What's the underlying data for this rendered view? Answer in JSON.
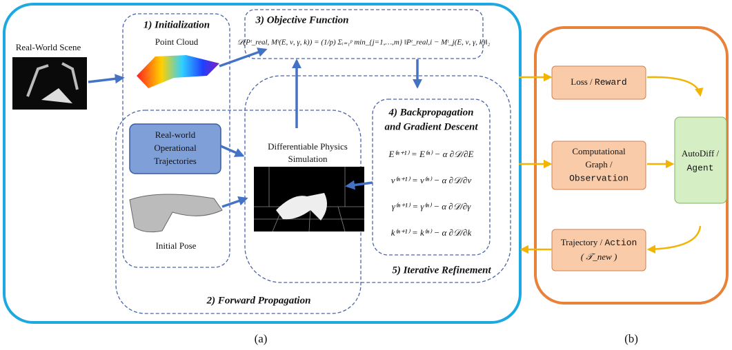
{
  "scene_label": "Real-World Scene",
  "initialization": {
    "title": "1) Initialization",
    "point_cloud": "Point Cloud"
  },
  "objective": {
    "title": "3) Objective Function",
    "formula": "𝒟(Pᵗ_real, Mᵗ(E, ν, γ, k)) = (1/p) Σᵢ₌₁ᵖ min_{j=1,…,m} ‖Pᵗ_real,i − Mᵗ_j(E, ν, γ, k)‖₂"
  },
  "trajectories_box": {
    "lines": [
      "Real-world",
      "Operational",
      "Trajectories"
    ]
  },
  "simulation": {
    "lines": [
      "Differentiable Physics",
      "Simulation"
    ]
  },
  "initial_pose": "Initial Pose",
  "backprop": {
    "title_lines": [
      "4) Backpropagation",
      "and Gradient Descent"
    ],
    "equations": [
      "E⁽ⁿ⁺¹⁾ = E⁽ⁿ⁾ − α ∂𝒟/∂E",
      "ν⁽ⁿ⁺¹⁾ = ν⁽ⁿ⁾ − α ∂𝒟/∂ν",
      "γ⁽ⁿ⁺¹⁾ = γ⁽ⁿ⁾ − α ∂𝒟/∂γ",
      "k⁽ⁿ⁺¹⁾ = k⁽ⁿ⁾ − α ∂𝒟/∂k"
    ]
  },
  "iterative_refinement": "5) Iterative Refinement",
  "forward_propagation": "2) Forward Propagation",
  "panel_b": {
    "loss": {
      "label": "Loss /",
      "code": "Reward"
    },
    "graph": {
      "lines": [
        "Computational",
        "Graph /"
      ],
      "code": "Observation"
    },
    "autodiff": {
      "label": "AutoDiff /",
      "code": "Agent"
    },
    "trajectory": {
      "label": "Trajectory /",
      "code": "Action",
      "sub": "( 𝒯_new )"
    }
  },
  "caption_a": "(a)",
  "caption_b": "(b)"
}
